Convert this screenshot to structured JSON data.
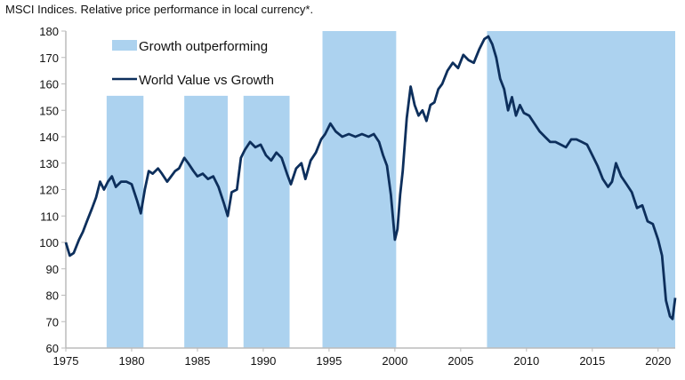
{
  "chart_data": {
    "type": "line",
    "title": "MSCI Indices. Relative price performance in local currency*.",
    "xlabel": "",
    "ylabel": "",
    "xlim": [
      1975,
      2021.3
    ],
    "ylim": [
      60,
      180
    ],
    "xticks": [
      1975,
      1980,
      1985,
      1990,
      1995,
      2000,
      2005,
      2010,
      2015,
      2020
    ],
    "yticks": [
      60,
      70,
      80,
      90,
      100,
      110,
      120,
      130,
      140,
      150,
      160,
      170,
      180
    ],
    "legend_position": "top-left",
    "shaded_regions": {
      "name": "Growth outperforming",
      "color": "#acd2ef",
      "periods": [
        {
          "start": 1978.1,
          "end": 1980.9,
          "top": 155.5
        },
        {
          "start": 1984.0,
          "end": 1987.3,
          "top": 155.5
        },
        {
          "start": 1988.5,
          "end": 1992.0,
          "top": 155.5
        },
        {
          "start": 1994.5,
          "end": 2000.1,
          "top": 180
        },
        {
          "start": 2007.0,
          "end": 2021.3,
          "top": 180
        }
      ]
    },
    "series": [
      {
        "name": "World Value vs Growth",
        "color": "#0d2f5c",
        "x": [
          1975.0,
          1975.3,
          1975.6,
          1976.0,
          1976.3,
          1976.6,
          1977.0,
          1977.3,
          1977.6,
          1977.9,
          1978.2,
          1978.5,
          1978.8,
          1979.2,
          1979.6,
          1980.0,
          1980.4,
          1980.7,
          1981.0,
          1981.3,
          1981.6,
          1982.0,
          1982.3,
          1982.7,
          1983.0,
          1983.3,
          1983.6,
          1984.0,
          1984.3,
          1984.7,
          1985.0,
          1985.4,
          1985.8,
          1986.2,
          1986.6,
          1987.0,
          1987.3,
          1987.6,
          1988.0,
          1988.3,
          1988.6,
          1989.0,
          1989.4,
          1989.8,
          1990.2,
          1990.6,
          1991.0,
          1991.4,
          1991.8,
          1992.1,
          1992.5,
          1992.9,
          1993.2,
          1993.6,
          1994.0,
          1994.4,
          1994.7,
          1995.1,
          1995.5,
          1996.0,
          1996.5,
          1997.0,
          1997.5,
          1998.0,
          1998.4,
          1998.8,
          1999.1,
          1999.4,
          1999.7,
          2000.0,
          2000.2,
          2000.4,
          2000.6,
          2000.9,
          2001.2,
          2001.5,
          2001.8,
          2002.1,
          2002.4,
          2002.7,
          2003.0,
          2003.3,
          2003.6,
          2004.0,
          2004.4,
          2004.8,
          2005.2,
          2005.6,
          2006.0,
          2006.4,
          2006.8,
          2007.1,
          2007.4,
          2007.7,
          2008.0,
          2008.3,
          2008.6,
          2008.9,
          2009.2,
          2009.5,
          2009.8,
          2010.2,
          2010.6,
          2011.0,
          2011.4,
          2011.8,
          2012.2,
          2012.6,
          2013.0,
          2013.4,
          2013.8,
          2014.2,
          2014.6,
          2015.0,
          2015.4,
          2015.8,
          2016.2,
          2016.5,
          2016.8,
          2017.2,
          2017.6,
          2018.0,
          2018.4,
          2018.8,
          2019.2,
          2019.6,
          2020.0,
          2020.3,
          2020.6,
          2020.9,
          2021.1,
          2021.3
        ],
        "values": [
          100,
          95,
          96,
          101,
          104,
          108,
          113,
          117,
          123,
          120,
          123,
          125,
          121,
          123,
          123,
          122,
          116,
          111,
          120,
          127,
          126,
          128,
          126,
          123,
          125,
          127,
          128,
          132,
          130,
          127,
          125,
          126,
          124,
          125,
          121,
          115,
          110,
          119,
          120,
          132,
          135,
          138,
          136,
          137,
          133,
          131,
          134,
          132,
          126,
          122,
          128,
          130,
          124,
          131,
          134,
          139,
          141,
          145,
          142,
          140,
          141,
          140,
          141,
          140,
          141,
          138,
          133,
          129,
          118,
          101,
          105,
          118,
          127,
          147,
          159,
          152,
          148,
          150,
          146,
          152,
          153,
          158,
          160,
          165,
          168,
          166,
          171,
          169,
          168,
          173,
          177,
          178,
          175,
          170,
          162,
          158,
          150,
          155,
          148,
          152,
          149,
          148,
          145,
          142,
          140,
          138,
          138,
          137,
          136,
          139,
          139,
          138,
          137,
          133,
          129,
          124,
          121,
          123,
          130,
          125,
          122,
          119,
          113,
          114,
          108,
          107,
          101,
          95,
          78,
          72,
          71,
          79
        ]
      }
    ]
  }
}
